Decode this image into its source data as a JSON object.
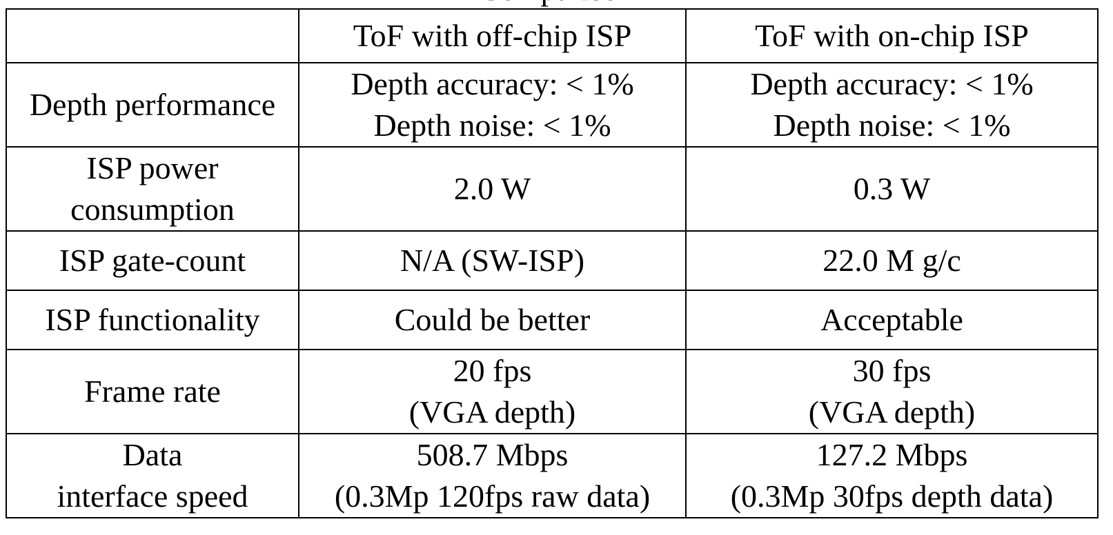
{
  "title": "Comparison",
  "columns": [
    "",
    "ToF with off-chip ISP",
    "ToF with on-chip ISP"
  ],
  "rows": [
    {
      "label": [
        "Depth performance"
      ],
      "off_chip": [
        "Depth accuracy: < 1%",
        "Depth noise: < 1%"
      ],
      "on_chip": [
        "Depth accuracy: < 1%",
        "Depth noise: < 1%"
      ]
    },
    {
      "label": [
        "ISP power",
        "consumption"
      ],
      "off_chip": [
        "2.0 W"
      ],
      "on_chip": [
        "0.3 W"
      ]
    },
    {
      "label": [
        "ISP gate-count"
      ],
      "off_chip": [
        "N/A (SW-ISP)"
      ],
      "on_chip": [
        "22.0 M g/c"
      ]
    },
    {
      "label": [
        "ISP functionality"
      ],
      "off_chip": [
        "Could be better"
      ],
      "on_chip": [
        "Acceptable"
      ]
    },
    {
      "label": [
        "Frame rate"
      ],
      "off_chip": [
        "20 fps",
        "(VGA depth)"
      ],
      "on_chip": [
        "30 fps",
        "(VGA depth)"
      ]
    },
    {
      "label": [
        "Data",
        "interface speed"
      ],
      "off_chip": [
        "508.7 Mbps",
        "(0.3Mp 120fps raw data)"
      ],
      "on_chip": [
        "127.2 Mbps",
        "(0.3Mp 30fps depth data)"
      ]
    }
  ]
}
